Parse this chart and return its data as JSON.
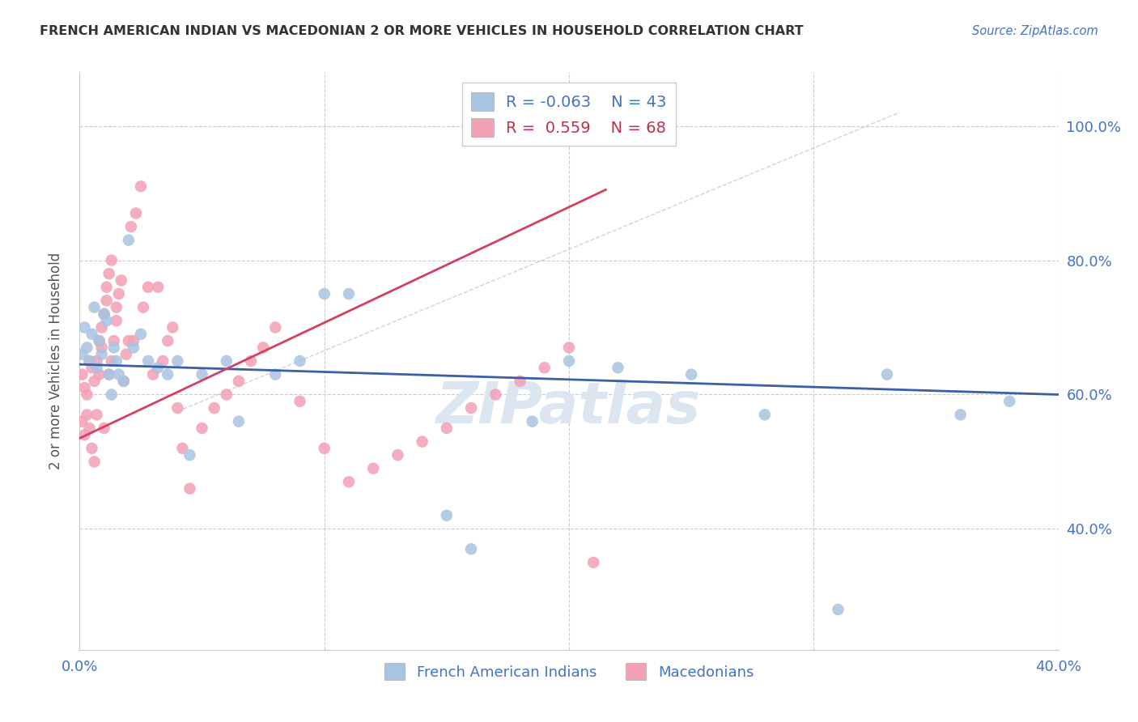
{
  "title": "FRENCH AMERICAN INDIAN VS MACEDONIAN 2 OR MORE VEHICLES IN HOUSEHOLD CORRELATION CHART",
  "source": "Source: ZipAtlas.com",
  "ylabel": "2 or more Vehicles in Household",
  "xlim": [
    0.0,
    0.4
  ],
  "ylim": [
    0.22,
    1.08
  ],
  "yticks": [
    0.4,
    0.6,
    0.8,
    1.0
  ],
  "xticks": [
    0.0,
    0.1,
    0.2,
    0.3,
    0.4
  ],
  "legend_R_blue": "-0.063",
  "legend_N_blue": "43",
  "legend_R_pink": "0.559",
  "legend_N_pink": "68",
  "blue_color": "#a8c4e0",
  "pink_color": "#f4a0b5",
  "blue_line_color": "#3a5fa8",
  "pink_line_color": "#d44060",
  "diagonal_color": "#cccccc",
  "watermark_color": "#dce6f0",
  "background_color": "#ffffff",
  "grid_color": "#cccccc",
  "blue_x": [
    0.001,
    0.002,
    0.003,
    0.004,
    0.005,
    0.006,
    0.007,
    0.008,
    0.009,
    0.01,
    0.011,
    0.012,
    0.013,
    0.014,
    0.015,
    0.016,
    0.018,
    0.02,
    0.022,
    0.025,
    0.028,
    0.032,
    0.036,
    0.04,
    0.045,
    0.05,
    0.06,
    0.065,
    0.08,
    0.09,
    0.1,
    0.11,
    0.15,
    0.16,
    0.185,
    0.2,
    0.22,
    0.25,
    0.28,
    0.31,
    0.33,
    0.36,
    0.38
  ],
  "blue_y": [
    0.66,
    0.7,
    0.67,
    0.65,
    0.69,
    0.73,
    0.64,
    0.68,
    0.66,
    0.72,
    0.71,
    0.63,
    0.6,
    0.67,
    0.65,
    0.63,
    0.62,
    0.83,
    0.67,
    0.69,
    0.65,
    0.64,
    0.63,
    0.65,
    0.51,
    0.63,
    0.65,
    0.56,
    0.63,
    0.65,
    0.75,
    0.75,
    0.42,
    0.37,
    0.56,
    0.65,
    0.64,
    0.63,
    0.57,
    0.28,
    0.63,
    0.57,
    0.59
  ],
  "pink_x": [
    0.001,
    0.001,
    0.002,
    0.002,
    0.003,
    0.003,
    0.004,
    0.004,
    0.005,
    0.005,
    0.006,
    0.006,
    0.007,
    0.007,
    0.008,
    0.008,
    0.009,
    0.009,
    0.01,
    0.01,
    0.011,
    0.011,
    0.012,
    0.012,
    0.013,
    0.013,
    0.014,
    0.015,
    0.015,
    0.016,
    0.017,
    0.018,
    0.019,
    0.02,
    0.021,
    0.022,
    0.023,
    0.025,
    0.026,
    0.028,
    0.03,
    0.032,
    0.034,
    0.036,
    0.038,
    0.04,
    0.042,
    0.045,
    0.05,
    0.055,
    0.06,
    0.065,
    0.07,
    0.075,
    0.08,
    0.09,
    0.1,
    0.11,
    0.12,
    0.13,
    0.14,
    0.15,
    0.16,
    0.17,
    0.18,
    0.19,
    0.2,
    0.21
  ],
  "pink_y": [
    0.56,
    0.63,
    0.54,
    0.61,
    0.57,
    0.6,
    0.55,
    0.65,
    0.52,
    0.64,
    0.5,
    0.62,
    0.57,
    0.65,
    0.63,
    0.68,
    0.7,
    0.67,
    0.55,
    0.72,
    0.74,
    0.76,
    0.78,
    0.63,
    0.8,
    0.65,
    0.68,
    0.71,
    0.73,
    0.75,
    0.77,
    0.62,
    0.66,
    0.68,
    0.85,
    0.68,
    0.87,
    0.91,
    0.73,
    0.76,
    0.63,
    0.76,
    0.65,
    0.68,
    0.7,
    0.58,
    0.52,
    0.46,
    0.55,
    0.58,
    0.6,
    0.62,
    0.65,
    0.67,
    0.7,
    0.59,
    0.52,
    0.47,
    0.49,
    0.51,
    0.53,
    0.55,
    0.58,
    0.6,
    0.62,
    0.64,
    0.67,
    0.35
  ],
  "blue_line_x": [
    0.0,
    0.4
  ],
  "blue_line_y": [
    0.645,
    0.6
  ],
  "pink_line_x": [
    0.0,
    0.215
  ],
  "pink_line_y": [
    0.535,
    0.905
  ]
}
